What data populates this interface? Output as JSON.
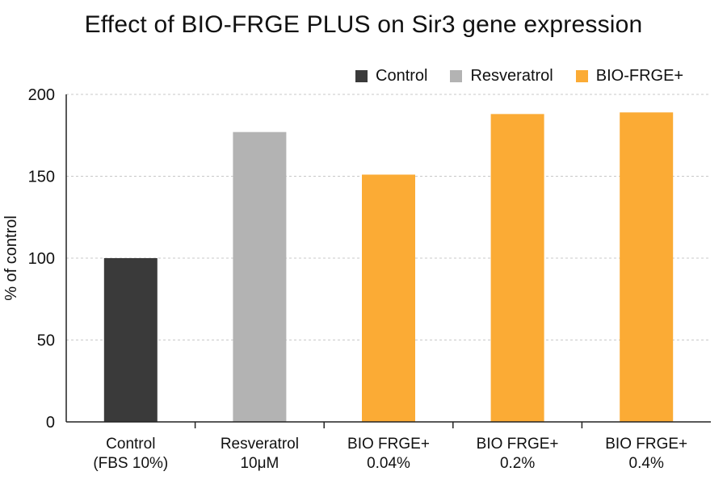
{
  "chart_data": {
    "type": "bar",
    "title": "Effect of BIO-FRGE PLUS on Sir3 gene expression",
    "xlabel": "",
    "ylabel": "% of control",
    "ylim": [
      0,
      200
    ],
    "yticks": [
      0,
      50,
      100,
      150,
      200
    ],
    "grid": true,
    "legend_position": "top-right",
    "categories": [
      [
        "Control",
        "(FBS 10%)"
      ],
      [
        "Resveratrol",
        "10μM"
      ],
      [
        "BIO FRGE+",
        "0.04%"
      ],
      [
        "BIO FRGE+",
        "0.2%"
      ],
      [
        "BIO FRGE+",
        "0.4%"
      ]
    ],
    "values": [
      100,
      177,
      151,
      188,
      189
    ],
    "bar_colors": [
      "#3a3a3a",
      "#b3b3b3",
      "#fbab35",
      "#fbab35",
      "#fbab35"
    ],
    "legend": [
      {
        "name": "Control",
        "color": "#3a3a3a"
      },
      {
        "name": "Resveratrol",
        "color": "#b3b3b3"
      },
      {
        "name": "BIO-FRGE+",
        "color": "#fbab35"
      }
    ]
  }
}
